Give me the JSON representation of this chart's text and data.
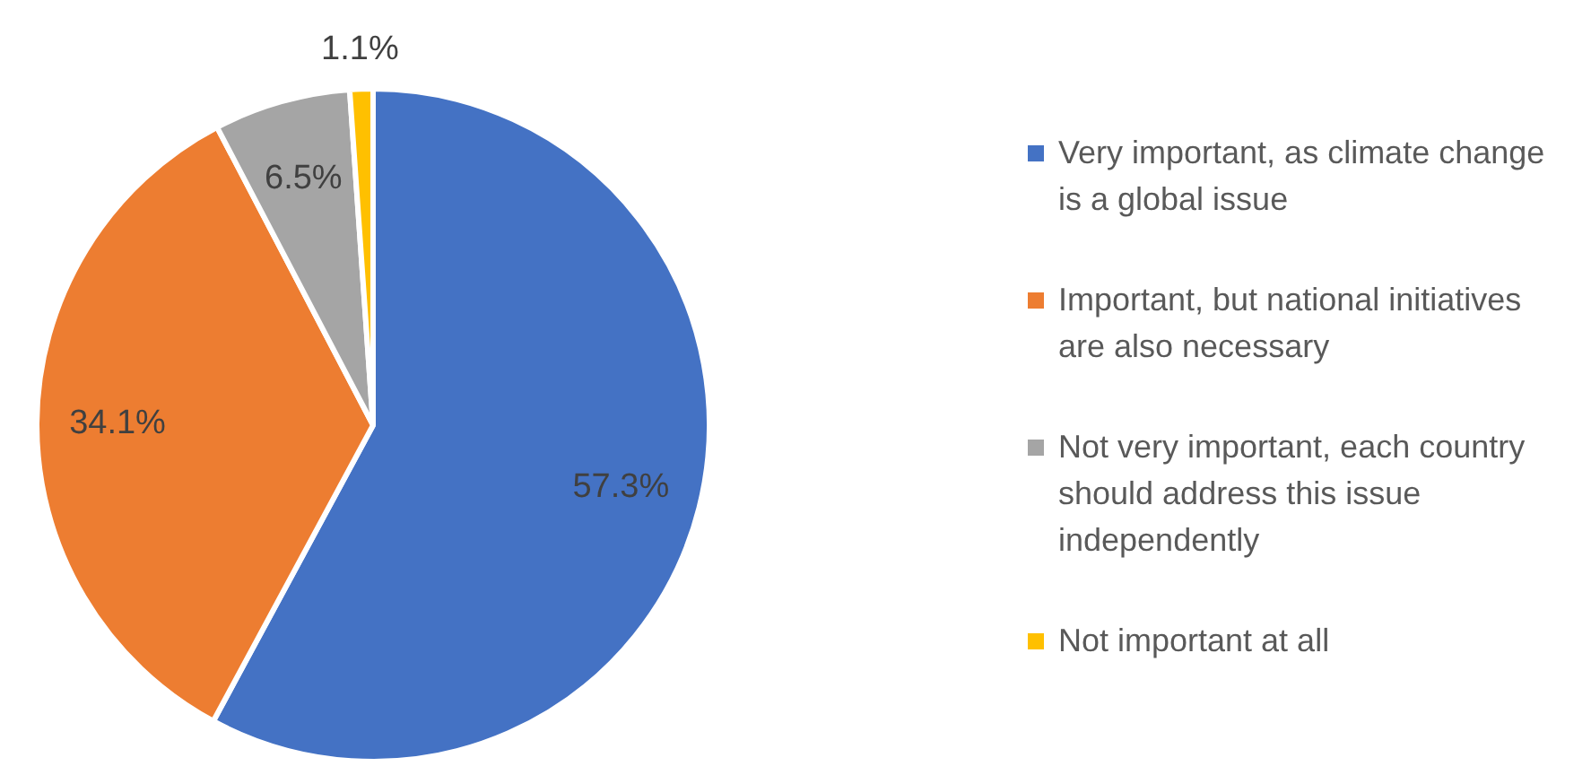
{
  "chart_data": {
    "type": "pie",
    "categories": [
      "Very important, as climate change is a global issue",
      "Important, but national initiatives are also necessary",
      "Not very important, each country should address this issue independently",
      "Not important at all"
    ],
    "values": [
      57.3,
      34.1,
      6.5,
      1.1
    ],
    "value_labels": [
      "57.3%",
      "34.1%",
      "6.5%",
      "1.1%"
    ],
    "colors": [
      "#4472c4",
      "#ed7d31",
      "#a5a5a5",
      "#ffc000"
    ],
    "legend": "right"
  }
}
